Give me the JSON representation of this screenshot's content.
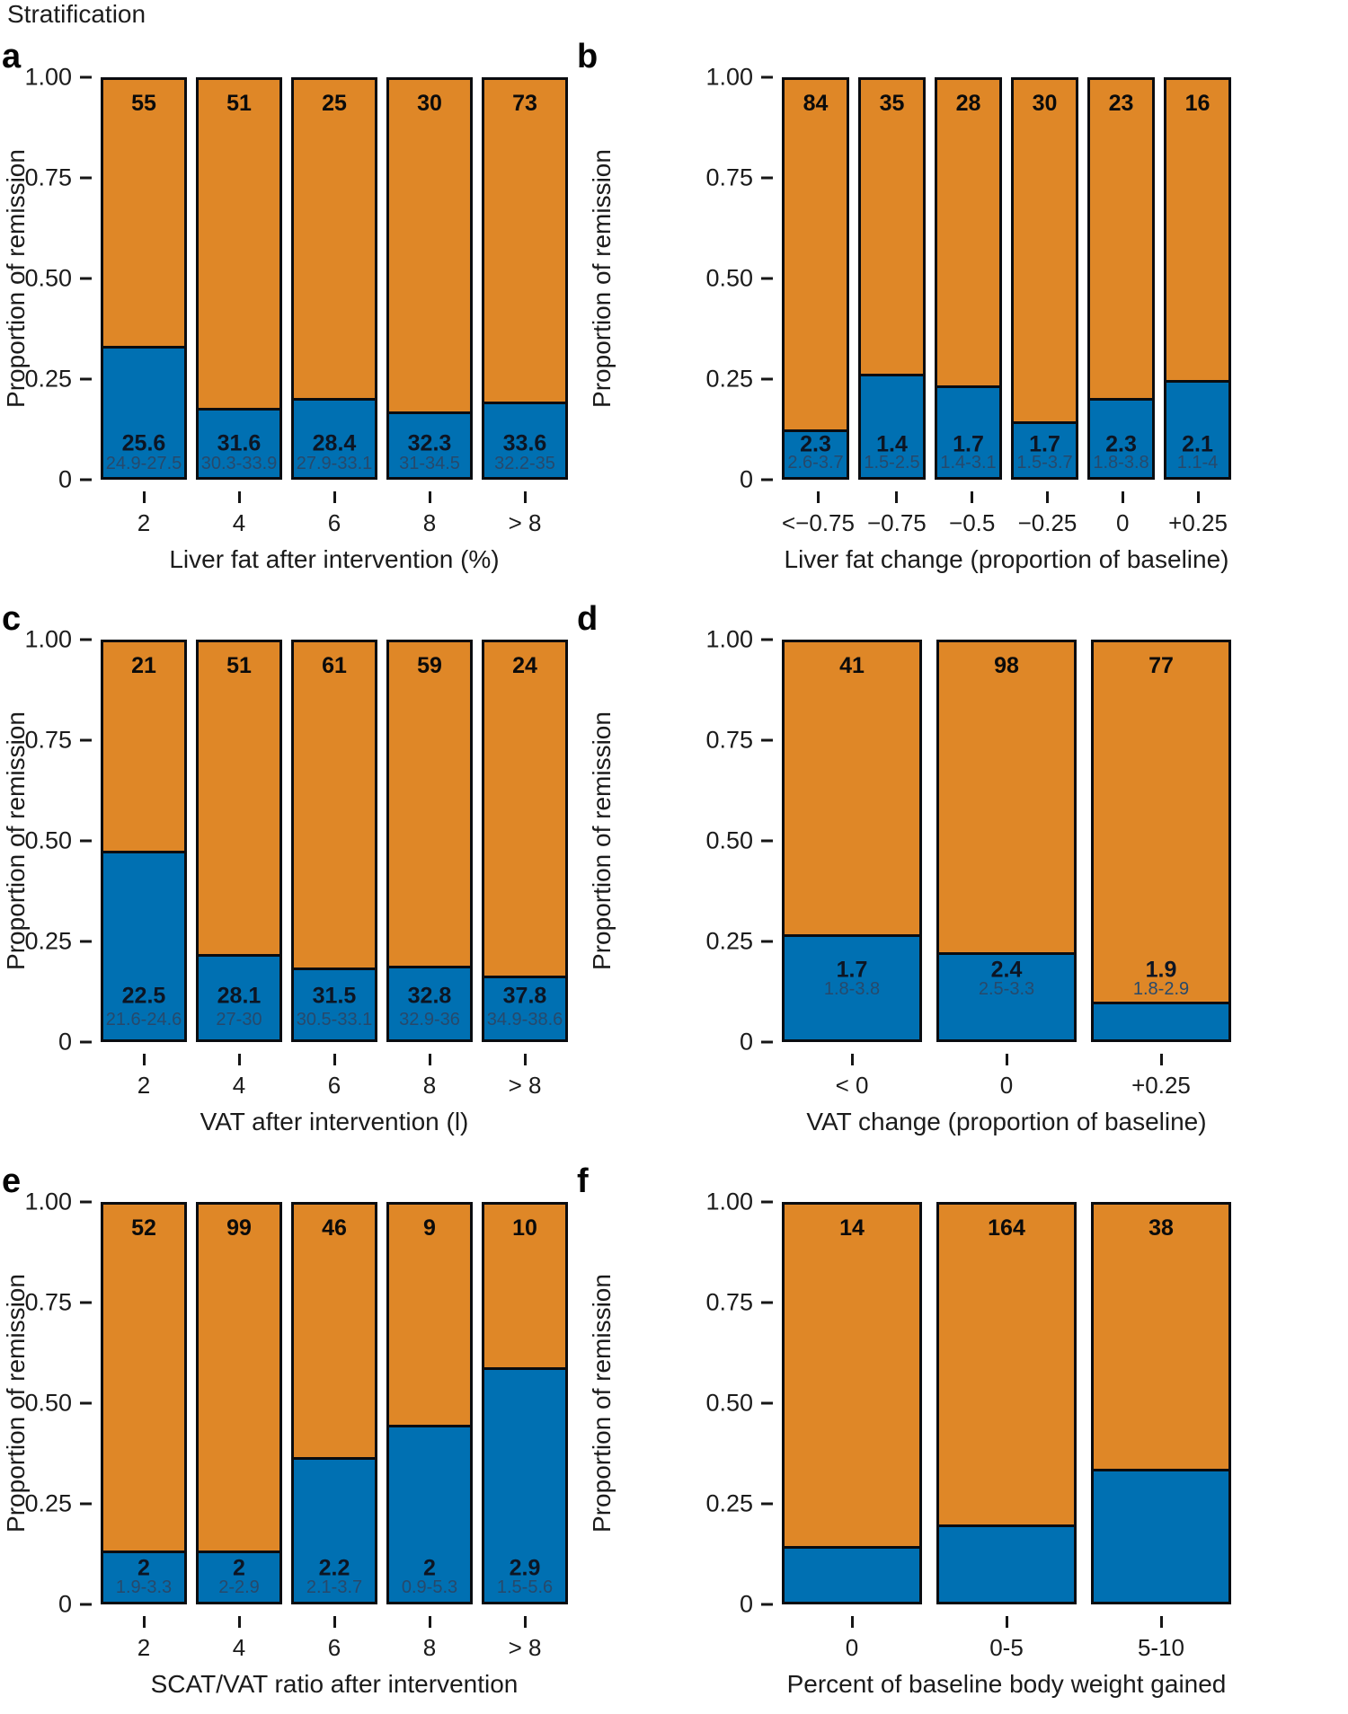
{
  "title": "Stratification",
  "colors": {
    "segment_top_orange": "#DF8727",
    "segment_bottom_blue": "#0070B2",
    "bar_border": "#0A0C10",
    "value_label": "#0D1523",
    "range_label": "#27496B"
  },
  "ylabel": "Proportion of remission",
  "ytick_labels": [
    "1.00",
    "0.75",
    "0.50",
    "0.25",
    "0"
  ],
  "chart_data": [
    {
      "panel": "a",
      "type": "bar",
      "stacked": true,
      "title": "",
      "xlabel": "Liver fat after intervention (%)",
      "ylabel": "Proportion of remission",
      "ylim": [
        0,
        1
      ],
      "yticks": [
        1.0,
        0.75,
        0.5,
        0.25,
        0
      ],
      "categories": [
        "2",
        "4",
        "6",
        "8",
        "> 8"
      ],
      "counts_top": [
        "55",
        "51",
        "25",
        "30",
        "73"
      ],
      "series": [
        {
          "name": "remission-blue",
          "values": [
            0.33,
            0.175,
            0.2,
            0.165,
            0.19
          ]
        },
        {
          "name": "no-remission-orange",
          "values": [
            0.67,
            0.825,
            0.8,
            0.835,
            0.81
          ]
        }
      ],
      "bar_values": [
        "25.6",
        "31.6",
        "28.4",
        "32.3",
        "33.6"
      ],
      "bar_ranges": [
        "24.9-27.5",
        "30.3-33.9",
        "27.9-33.1",
        "31-34.5",
        "32.2-35"
      ]
    },
    {
      "panel": "b",
      "type": "bar",
      "stacked": true,
      "title": "",
      "xlabel": "Liver fat change (proportion of baseline)",
      "ylabel": "Proportion of remission",
      "ylim": [
        0,
        1
      ],
      "yticks": [
        1.0,
        0.75,
        0.5,
        0.25,
        0
      ],
      "categories": [
        "<−0.75",
        "−0.75",
        "−0.5",
        "−0.25",
        "0",
        "+0.25"
      ],
      "counts_top": [
        "84",
        "35",
        "28",
        "30",
        "23",
        "16"
      ],
      "series": [
        {
          "name": "remission-blue",
          "values": [
            0.12,
            0.26,
            0.23,
            0.14,
            0.2,
            0.245
          ]
        },
        {
          "name": "no-remission-orange",
          "values": [
            0.88,
            0.74,
            0.77,
            0.86,
            0.8,
            0.755
          ]
        }
      ],
      "bar_values": [
        "2.3",
        "1.4",
        "1.7",
        "1.7",
        "2.3",
        "2.1"
      ],
      "bar_ranges": [
        "2.6-3.7",
        "1.5-2.5",
        "1.4-3.1",
        "1.5-3.7",
        "1.8-3.8",
        "1.1-4"
      ]
    },
    {
      "panel": "c",
      "type": "bar",
      "stacked": true,
      "title": "",
      "xlabel": "VAT after intervention (l)",
      "ylabel": "Proportion of remission",
      "ylim": [
        0,
        1
      ],
      "yticks": [
        1.0,
        0.75,
        0.5,
        0.25,
        0
      ],
      "categories": [
        "2",
        "4",
        "6",
        "8",
        "> 8"
      ],
      "counts_top": [
        "21",
        "51",
        "61",
        "59",
        "24"
      ],
      "series": [
        {
          "name": "remission-blue",
          "values": [
            0.475,
            0.215,
            0.18,
            0.185,
            0.16
          ]
        },
        {
          "name": "no-remission-orange",
          "values": [
            0.525,
            0.785,
            0.82,
            0.815,
            0.84
          ]
        }
      ],
      "bar_values": [
        "22.5",
        "28.1",
        "31.5",
        "32.8",
        "37.8"
      ],
      "bar_ranges": [
        "21.6-24.6",
        "27-30",
        "30.5-33.1",
        "32.9-36",
        "34.9-38.6"
      ]
    },
    {
      "panel": "d",
      "type": "bar",
      "stacked": true,
      "title": "",
      "xlabel": "VAT change (proportion of baseline)",
      "ylabel": "Proportion of remission",
      "ylim": [
        0,
        1
      ],
      "yticks": [
        1.0,
        0.75,
        0.5,
        0.25,
        0
      ],
      "categories": [
        "< 0",
        "0",
        "+0.25"
      ],
      "counts_top": [
        "41",
        "98",
        "77"
      ],
      "series": [
        {
          "name": "remission-blue",
          "values": [
            0.265,
            0.22,
            0.095
          ]
        },
        {
          "name": "no-remission-orange",
          "values": [
            0.735,
            0.78,
            0.905
          ]
        }
      ],
      "bar_values": [
        "1.7",
        "2.4",
        "1.9"
      ],
      "bar_ranges": [
        "1.8-3.8",
        "2.5-3.3",
        "1.8-2.9"
      ]
    },
    {
      "panel": "e",
      "type": "bar",
      "stacked": true,
      "title": "",
      "xlabel": "SCAT/VAT ratio after intervention",
      "ylabel": "Proportion of remission",
      "ylim": [
        0,
        1
      ],
      "yticks": [
        1.0,
        0.75,
        0.5,
        0.25,
        0
      ],
      "categories": [
        "2",
        "4",
        "6",
        "8",
        "> 8"
      ],
      "counts_top": [
        "52",
        "99",
        "46",
        "9",
        "10"
      ],
      "series": [
        {
          "name": "remission-blue",
          "values": [
            0.13,
            0.13,
            0.365,
            0.445,
            0.59
          ]
        },
        {
          "name": "no-remission-orange",
          "values": [
            0.87,
            0.87,
            0.635,
            0.555,
            0.41
          ]
        }
      ],
      "bar_values": [
        "2",
        "2",
        "2.2",
        "2",
        "2.9"
      ],
      "bar_ranges": [
        "1.9-3.3",
        "2-2.9",
        "2.1-3.7",
        "0.9-5.3",
        "1.5-5.6"
      ]
    },
    {
      "panel": "f",
      "type": "bar",
      "stacked": true,
      "title": "",
      "xlabel": "Percent of baseline body weight gained",
      "ylabel": "Proportion of remission",
      "ylim": [
        0,
        1
      ],
      "yticks": [
        1.0,
        0.75,
        0.5,
        0.25,
        0
      ],
      "categories": [
        "0",
        "0-5",
        "5-10"
      ],
      "counts_top": [
        "14",
        "164",
        "38"
      ],
      "series": [
        {
          "name": "remission-blue",
          "values": [
            0.14,
            0.195,
            0.335
          ]
        },
        {
          "name": "no-remission-orange",
          "values": [
            0.86,
            0.805,
            0.665
          ]
        }
      ],
      "bar_values": [],
      "bar_ranges": []
    }
  ]
}
